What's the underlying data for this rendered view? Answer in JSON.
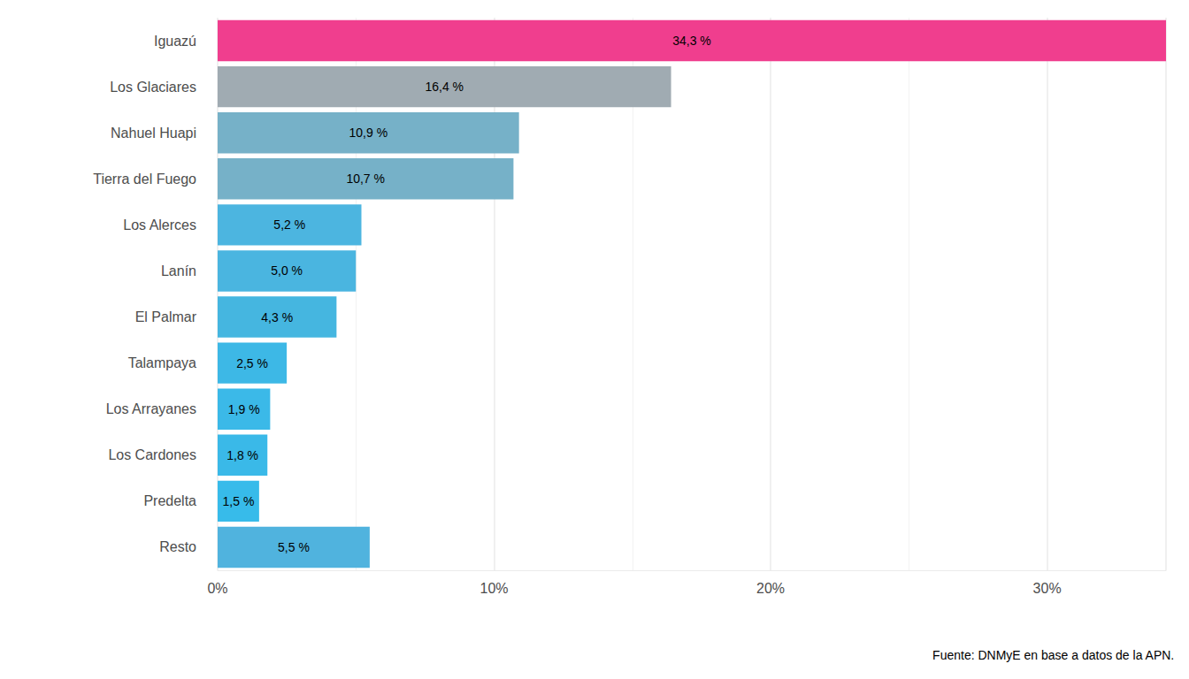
{
  "chart_data": {
    "type": "bar",
    "orientation": "horizontal",
    "caption": "Fuente: DNMyE en base a datos de la APN.",
    "categories": [
      "Iguazú",
      "Los Glaciares",
      "Nahuel Huapi",
      "Tierra del Fuego",
      "Los Alerces",
      "Lanín",
      "El Palmar",
      "Talampaya",
      "Los Arrayanes",
      "Los Cardones",
      "Predelta",
      "Resto"
    ],
    "values": [
      34.3,
      16.4,
      10.9,
      10.7,
      5.2,
      5.0,
      4.3,
      2.5,
      1.9,
      1.8,
      1.5,
      5.5
    ],
    "value_labels": [
      "34,3 %",
      "16,4 %",
      "10,9 %",
      "10,7 %",
      "5,2 %",
      "5,0 %",
      "4,3 %",
      "2,5 %",
      "1,9 %",
      "1,8 %",
      "1,5 %",
      "5,5 %"
    ],
    "colors": [
      "#f03e8e",
      "#a0abb2",
      "#76b1c8",
      "#76b1c8",
      "#4cb5e0",
      "#4ab5e0",
      "#45b6e0",
      "#3db8e6",
      "#3bb9e8",
      "#3ab9e8",
      "#37bbea",
      "#50b3de"
    ],
    "xlim": [
      0,
      34.3
    ],
    "xticks": [
      {
        "value": 0,
        "label": "0%"
      },
      {
        "value": 10,
        "label": "10%"
      },
      {
        "value": 20,
        "label": "20%"
      },
      {
        "value": 30,
        "label": "30%"
      }
    ],
    "grid": true,
    "data_labels": true
  }
}
